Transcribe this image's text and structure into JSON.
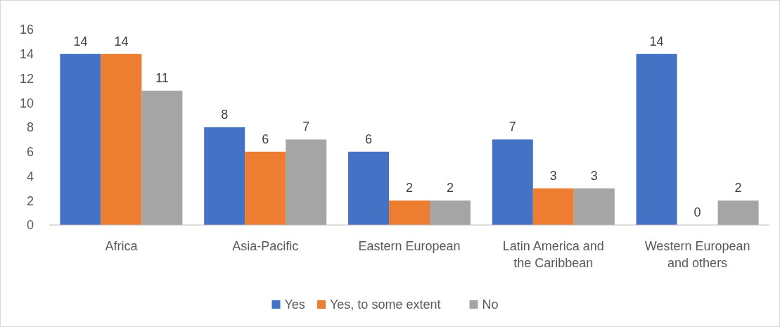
{
  "chart_data": {
    "type": "bar",
    "categories": [
      "Africa",
      "Asia-Pacific",
      "Eastern European",
      "Latin America and the Caribbean",
      "Western European and others"
    ],
    "series": [
      {
        "name": "Yes",
        "color": "#4472c4",
        "values": [
          14,
          8,
          6,
          7,
          14
        ]
      },
      {
        "name": "Yes, to some extent",
        "color": "#ed7d31",
        "values": [
          14,
          6,
          2,
          3,
          0
        ]
      },
      {
        "name": "No",
        "color": "#a5a5a5",
        "values": [
          11,
          7,
          2,
          3,
          2
        ]
      }
    ],
    "ylim": [
      0,
      16
    ],
    "yticks": [
      0,
      2,
      4,
      6,
      8,
      10,
      12,
      14,
      16
    ],
    "grid": false,
    "legend": "bottom",
    "data_labels": true
  }
}
